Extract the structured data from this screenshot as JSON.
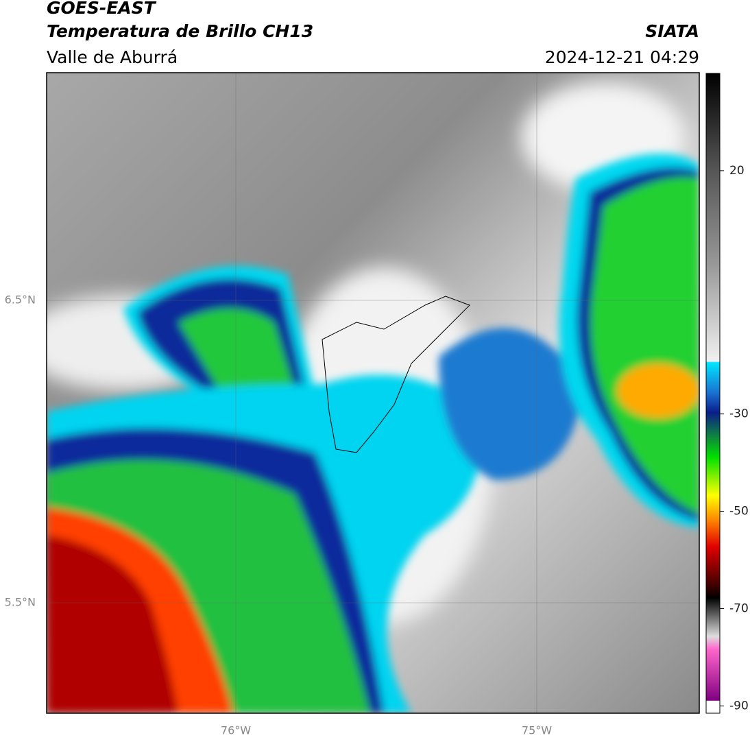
{
  "header": {
    "title": "GOES-EAST",
    "subtitle": "Temperatura de Brillo CH13",
    "region": "Valle de Aburrá",
    "source": "SIATA",
    "timestamp": "2024-12-21 04:29"
  },
  "map": {
    "lat_labels": [
      "6.5°N",
      "5.5°N"
    ],
    "lon_labels": [
      "76°W",
      "75°W"
    ]
  },
  "colorbar": {
    "lim": [
      -91.5,
      40
    ],
    "ticks": [
      20,
      -30,
      -50,
      -70,
      -90
    ]
  }
}
